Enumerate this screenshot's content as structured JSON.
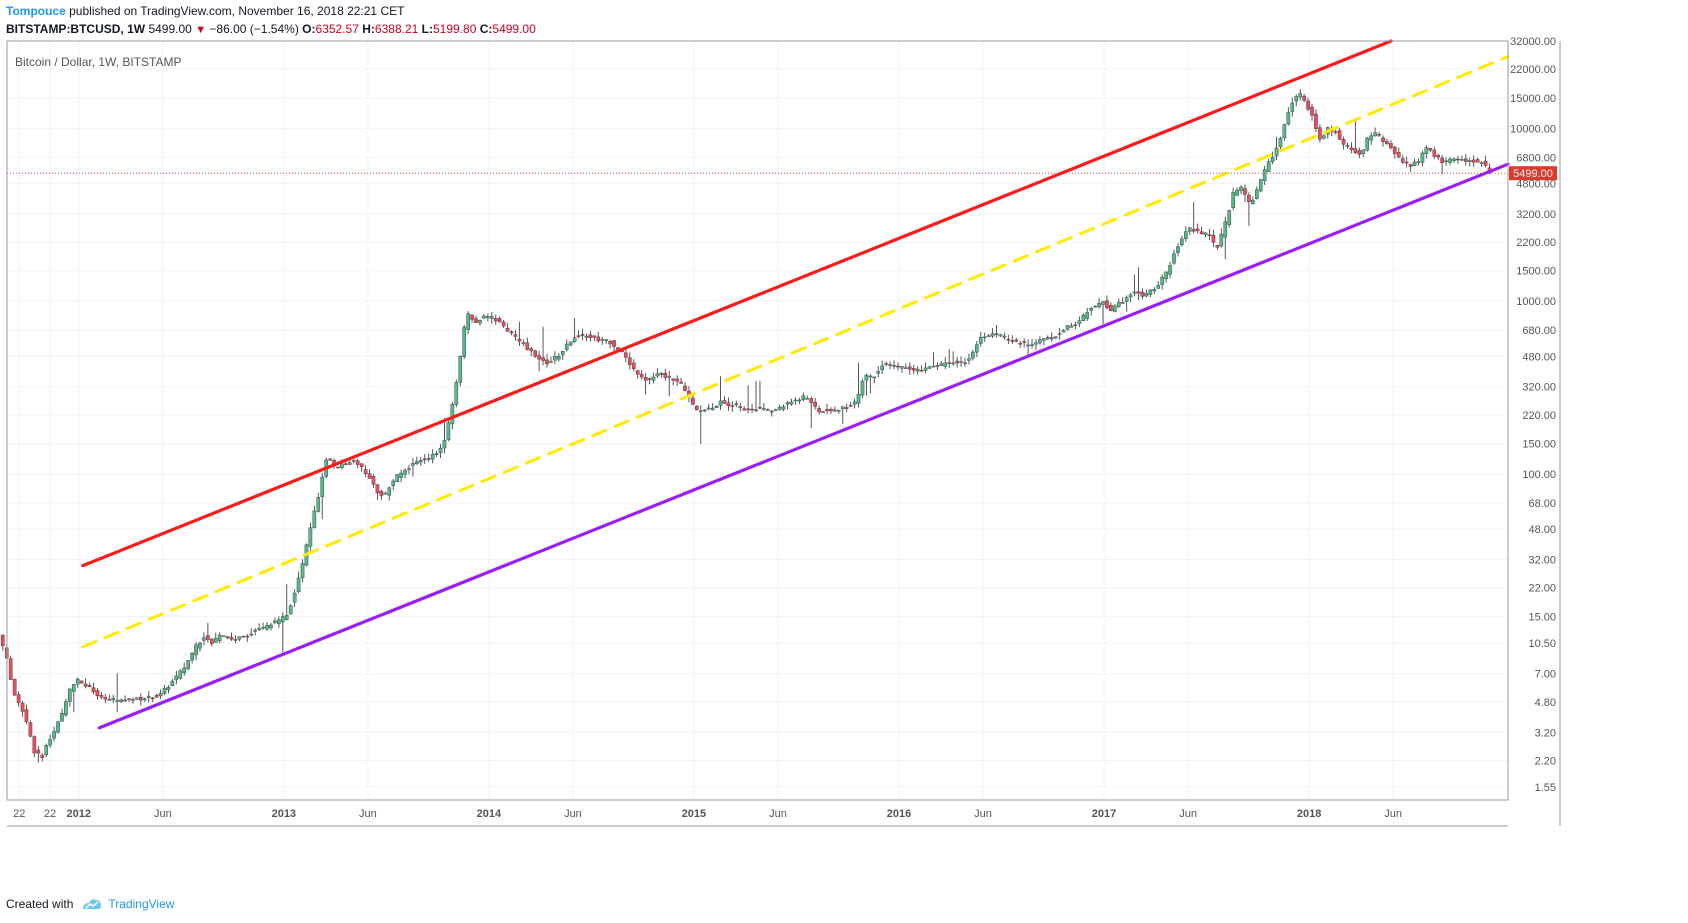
{
  "header": {
    "publisher": "Tompouce",
    "published_text": "published on TradingView.com, November 16, 2018 22:21 CET",
    "symbol": "BITSTAMP:BTCUSD, 1W",
    "last": "5499.00",
    "change": "−86.00 (−1.54%)",
    "o_label": "O:",
    "open": "6352.57",
    "h_label": "H:",
    "high": "6388.21",
    "l_label": "L:",
    "low": "5199.80",
    "c_label": "C:",
    "close": "5499.00"
  },
  "footer": {
    "created_with": "Created with",
    "brand": "TradingView"
  },
  "colors": {
    "up": "#53b987",
    "down": "#eb4d5c",
    "wick": "#444444",
    "resistance": "#ff1a1a",
    "midline": "#ffea00",
    "support": "#9b1cff",
    "price_tag": "#e0392b",
    "grid": "#f0f3fa",
    "axis": "#555555"
  },
  "chart_data": {
    "type": "candlestick",
    "title": "Bitcoin / Dollar, 1W, BITSTAMP",
    "x_range": [
      2011.65,
      2018.97
    ],
    "y_scale": "log",
    "y_range": [
      1.3,
      32000
    ],
    "yticks": [
      {
        "v": 32000,
        "label": "32000.00"
      },
      {
        "v": 22000,
        "label": "22000.00"
      },
      {
        "v": 15000,
        "label": "15000.00"
      },
      {
        "v": 10000,
        "label": "10000.00"
      },
      {
        "v": 6800,
        "label": "6800.00"
      },
      {
        "v": 4800,
        "label": "4800.00"
      },
      {
        "v": 3200,
        "label": "3200.00"
      },
      {
        "v": 2200,
        "label": "2200.00"
      },
      {
        "v": 1500,
        "label": "1500.00"
      },
      {
        "v": 1000,
        "label": "1000.00"
      },
      {
        "v": 680,
        "label": "680.00"
      },
      {
        "v": 480,
        "label": "480.00"
      },
      {
        "v": 320,
        "label": "320.00"
      },
      {
        "v": 220,
        "label": "220.00"
      },
      {
        "v": 150,
        "label": "150.00"
      },
      {
        "v": 100,
        "label": "100.00"
      },
      {
        "v": 68,
        "label": "68.00"
      },
      {
        "v": 48,
        "label": "48.00"
      },
      {
        "v": 32,
        "label": "32.00"
      },
      {
        "v": 22,
        "label": "22.00"
      },
      {
        "v": 15,
        "label": "15.00"
      },
      {
        "v": 10.5,
        "label": "10.50"
      },
      {
        "v": 7,
        "label": "7.00"
      },
      {
        "v": 4.8,
        "label": "4.80"
      },
      {
        "v": 3.2,
        "label": "3.20"
      },
      {
        "v": 2.2,
        "label": "2.20"
      },
      {
        "v": 1.55,
        "label": "1.55"
      }
    ],
    "xticks": [
      {
        "t": 2011.71,
        "label": "22",
        "bold": false
      },
      {
        "t": 2011.86,
        "label": "22",
        "bold": false
      },
      {
        "t": 2012.0,
        "label": "2012",
        "bold": true
      },
      {
        "t": 2012.41,
        "label": "Jun",
        "bold": false
      },
      {
        "t": 2013.0,
        "label": "2013",
        "bold": true
      },
      {
        "t": 2013.41,
        "label": "Jun",
        "bold": false
      },
      {
        "t": 2014.0,
        "label": "2014",
        "bold": true
      },
      {
        "t": 2014.41,
        "label": "Jun",
        "bold": false
      },
      {
        "t": 2015.0,
        "label": "2015",
        "bold": true
      },
      {
        "t": 2015.41,
        "label": "Jun",
        "bold": false
      },
      {
        "t": 2016.0,
        "label": "2016",
        "bold": true
      },
      {
        "t": 2016.41,
        "label": "Jun",
        "bold": false
      },
      {
        "t": 2017.0,
        "label": "2017",
        "bold": true
      },
      {
        "t": 2017.41,
        "label": "Jun",
        "bold": false
      },
      {
        "t": 2018.0,
        "label": "2018",
        "bold": true
      },
      {
        "t": 2018.41,
        "label": "Jun",
        "bold": false
      }
    ],
    "price_path": [
      [
        2011.62,
        11.5
      ],
      [
        2011.66,
        8.5
      ],
      [
        2011.69,
        5.5
      ],
      [
        2011.73,
        4.5
      ],
      [
        2011.76,
        3.5
      ],
      [
        2011.79,
        2.5
      ],
      [
        2011.83,
        2.3
      ],
      [
        2011.86,
        2.8
      ],
      [
        2011.89,
        3.2
      ],
      [
        2011.93,
        4.2
      ],
      [
        2011.96,
        5.5
      ],
      [
        2012.0,
        6.5
      ],
      [
        2012.06,
        5.8
      ],
      [
        2012.12,
        5.0
      ],
      [
        2012.2,
        4.9
      ],
      [
        2012.3,
        5.0
      ],
      [
        2012.4,
        5.2
      ],
      [
        2012.46,
        6.2
      ],
      [
        2012.52,
        7.5
      ],
      [
        2012.58,
        10.0
      ],
      [
        2012.62,
        11.5
      ],
      [
        2012.66,
        10.5
      ],
      [
        2012.7,
        12.0
      ],
      [
        2012.76,
        11.0
      ],
      [
        2012.82,
        11.5
      ],
      [
        2012.88,
        12.5
      ],
      [
        2012.95,
        13.5
      ],
      [
        2013.02,
        15.0
      ],
      [
        2013.06,
        20.0
      ],
      [
        2013.1,
        30.0
      ],
      [
        2013.14,
        50.0
      ],
      [
        2013.18,
        75.0
      ],
      [
        2013.22,
        130.0
      ],
      [
        2013.26,
        110.0
      ],
      [
        2013.3,
        115.0
      ],
      [
        2013.34,
        120.0
      ],
      [
        2013.38,
        110.0
      ],
      [
        2013.42,
        100.0
      ],
      [
        2013.46,
        80.0
      ],
      [
        2013.5,
        75.0
      ],
      [
        2013.55,
        95.0
      ],
      [
        2013.6,
        105.0
      ],
      [
        2013.66,
        120.0
      ],
      [
        2013.72,
        125.0
      ],
      [
        2013.78,
        140.0
      ],
      [
        2013.82,
        210.0
      ],
      [
        2013.86,
        400.0
      ],
      [
        2013.9,
        850.0
      ],
      [
        2013.94,
        750.0
      ],
      [
        2013.98,
        800.0
      ],
      [
        2014.02,
        820.0
      ],
      [
        2014.06,
        750.0
      ],
      [
        2014.12,
        640.0
      ],
      [
        2014.18,
        560.0
      ],
      [
        2014.24,
        470.0
      ],
      [
        2014.3,
        440.0
      ],
      [
        2014.36,
        500.0
      ],
      [
        2014.42,
        620.0
      ],
      [
        2014.48,
        640.0
      ],
      [
        2014.54,
        600.0
      ],
      [
        2014.6,
        580.0
      ],
      [
        2014.66,
        500.0
      ],
      [
        2014.72,
        400.0
      ],
      [
        2014.78,
        350.0
      ],
      [
        2014.84,
        380.0
      ],
      [
        2014.9,
        360.0
      ],
      [
        2014.96,
        320.0
      ],
      [
        2015.02,
        230.0
      ],
      [
        2015.08,
        240.0
      ],
      [
        2015.14,
        260.0
      ],
      [
        2015.2,
        250.0
      ],
      [
        2015.26,
        235.0
      ],
      [
        2015.32,
        240.0
      ],
      [
        2015.38,
        230.0
      ],
      [
        2015.44,
        245.0
      ],
      [
        2015.5,
        270.0
      ],
      [
        2015.56,
        280.0
      ],
      [
        2015.62,
        230.0
      ],
      [
        2015.68,
        235.0
      ],
      [
        2015.74,
        240.0
      ],
      [
        2015.8,
        260.0
      ],
      [
        2015.84,
        380.0
      ],
      [
        2015.88,
        360.0
      ],
      [
        2015.92,
        420.0
      ],
      [
        2015.96,
        430.0
      ],
      [
        2016.02,
        410.0
      ],
      [
        2016.1,
        400.0
      ],
      [
        2016.18,
        420.0
      ],
      [
        2016.26,
        440.0
      ],
      [
        2016.34,
        450.0
      ],
      [
        2016.4,
        600.0
      ],
      [
        2016.46,
        650.0
      ],
      [
        2016.52,
        620.0
      ],
      [
        2016.58,
        580.0
      ],
      [
        2016.64,
        560.0
      ],
      [
        2016.7,
        600.0
      ],
      [
        2016.76,
        620.0
      ],
      [
        2016.82,
        700.0
      ],
      [
        2016.88,
        740.0
      ],
      [
        2016.94,
        900.0
      ],
      [
        2017.0,
        1000.0
      ],
      [
        2017.04,
        880.0
      ],
      [
        2017.1,
        1000.0
      ],
      [
        2017.16,
        1150.0
      ],
      [
        2017.2,
        1050.0
      ],
      [
        2017.26,
        1200.0
      ],
      [
        2017.32,
        1500.0
      ],
      [
        2017.36,
        2000.0
      ],
      [
        2017.42,
        2700.0
      ],
      [
        2017.46,
        2500.0
      ],
      [
        2017.52,
        2400.0
      ],
      [
        2017.56,
        2000.0
      ],
      [
        2017.6,
        2800.0
      ],
      [
        2017.64,
        4200.0
      ],
      [
        2017.68,
        4500.0
      ],
      [
        2017.72,
        3600.0
      ],
      [
        2017.76,
        4500.0
      ],
      [
        2017.8,
        6000.0
      ],
      [
        2017.84,
        7200.0
      ],
      [
        2017.88,
        9500.0
      ],
      [
        2017.92,
        14000.0
      ],
      [
        2017.96,
        16000.0
      ],
      [
        2018.0,
        13500.0
      ],
      [
        2018.03,
        11500.0
      ],
      [
        2018.06,
        8500.0
      ],
      [
        2018.1,
        10000.0
      ],
      [
        2018.14,
        9500.0
      ],
      [
        2018.18,
        8000.0
      ],
      [
        2018.22,
        7500.0
      ],
      [
        2018.26,
        7000.0
      ],
      [
        2018.3,
        9000.0
      ],
      [
        2018.34,
        9300.0
      ],
      [
        2018.38,
        8200.0
      ],
      [
        2018.42,
        7500.0
      ],
      [
        2018.46,
        6500.0
      ],
      [
        2018.5,
        6100.0
      ],
      [
        2018.54,
        6400.0
      ],
      [
        2018.58,
        7800.0
      ],
      [
        2018.62,
        7000.0
      ],
      [
        2018.66,
        6400.0
      ],
      [
        2018.7,
        6500.0
      ],
      [
        2018.74,
        6600.0
      ],
      [
        2018.8,
        6500.0
      ],
      [
        2018.86,
        6350.0
      ],
      [
        2018.89,
        5499.0
      ]
    ],
    "trendlines": [
      {
        "name": "resistance",
        "style": "solid",
        "from": [
          2012.02,
          29.5
        ],
        "to": [
          2018.4,
          32000
        ]
      },
      {
        "name": "midline",
        "style": "dashed",
        "from": [
          2012.02,
          10.0
        ],
        "to": [
          2018.97,
          26000
        ]
      },
      {
        "name": "support",
        "style": "solid",
        "from": [
          2012.1,
          3.4
        ],
        "to": [
          2018.97,
          6200
        ]
      }
    ],
    "current_price": {
      "value": 5499,
      "label": "5499.00"
    }
  }
}
